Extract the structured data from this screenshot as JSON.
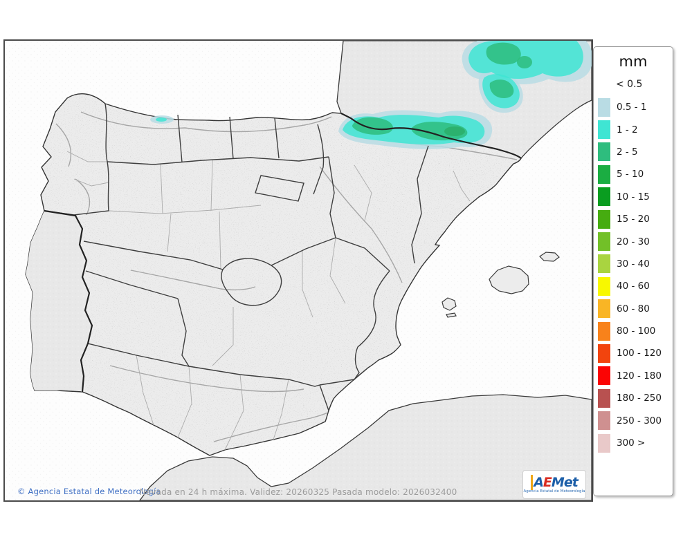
{
  "map": {
    "copyright": "© Agencia Estatal de Meteorología",
    "caption": "Nevada en 24 h máxima. Validez: 20260325 Pasada modelo: 2026032400",
    "logo": {
      "parts": [
        "A",
        "E",
        "Met"
      ],
      "subtitle": "Agencia Estatal de Meteorología"
    },
    "colors": {
      "sea": "#FDFDFD",
      "land_flat": "#E8E8E8",
      "land_spain": "#ECECEC",
      "boundary_dark": "#2e2e2e",
      "boundary_region": "#3e3e3e",
      "boundary_province": "#ababab",
      "snow_core_dark": "#2BAE68"
    }
  },
  "legend": {
    "title": "mm",
    "no_color_label": "< 0.5",
    "entries": [
      {
        "label": "0.5 - 1",
        "color": "#B9DCE4"
      },
      {
        "label": "1 - 2",
        "color": "#3FE5D3"
      },
      {
        "label": "2 - 5",
        "color": "#2EBD7E"
      },
      {
        "label": "5 - 10",
        "color": "#1BAD42"
      },
      {
        "label": "10 - 15",
        "color": "#0A9D20"
      },
      {
        "label": "15 - 20",
        "color": "#46AC10"
      },
      {
        "label": "20 - 30",
        "color": "#72C028"
      },
      {
        "label": "30 - 40",
        "color": "#A9D440"
      },
      {
        "label": "40 - 60",
        "color": "#F8F800"
      },
      {
        "label": "60 - 80",
        "color": "#F9B525"
      },
      {
        "label": "80 - 100",
        "color": "#F8821B"
      },
      {
        "label": "100 - 120",
        "color": "#F2440E"
      },
      {
        "label": "120 - 180",
        "color": "#FB0404"
      },
      {
        "label": "180 - 250",
        "color": "#B85150"
      },
      {
        "label": "250 - 300",
        "color": "#CF9090"
      },
      {
        "label": "300 >",
        "color": "#E9C9C9"
      }
    ]
  }
}
